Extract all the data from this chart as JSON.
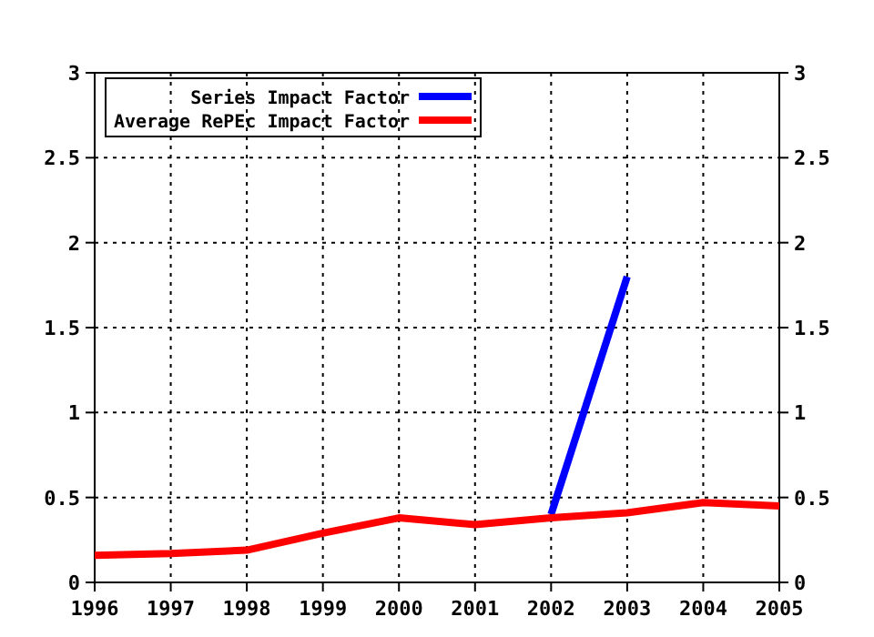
{
  "chart_data": {
    "type": "line",
    "x": [
      1996,
      1997,
      1998,
      1999,
      2000,
      2001,
      2002,
      2003,
      2004,
      2005
    ],
    "series": [
      {
        "name": "Series Impact Factor",
        "color": "#0000ff",
        "x": [
          2002,
          2003
        ],
        "values": [
          0.4,
          1.8
        ]
      },
      {
        "name": "Average RePEc Impact Factor",
        "color": "#ff0000",
        "values": [
          0.16,
          0.17,
          0.19,
          0.29,
          0.38,
          0.34,
          0.38,
          0.41,
          0.47,
          0.45
        ]
      }
    ],
    "xlim": [
      1996,
      2005
    ],
    "xticks": [
      1996,
      1997,
      1998,
      1999,
      2000,
      2001,
      2002,
      2003,
      2004,
      2005
    ],
    "ylim": [
      0,
      3
    ],
    "yticks": [
      0,
      0.5,
      1,
      1.5,
      2,
      2.5,
      3
    ],
    "y2lim": [
      0,
      3
    ],
    "y2ticks": [
      0,
      0.5,
      1,
      1.5,
      2,
      2.5,
      3
    ],
    "grid": true,
    "legend": "top left",
    "line_style": "solid"
  }
}
